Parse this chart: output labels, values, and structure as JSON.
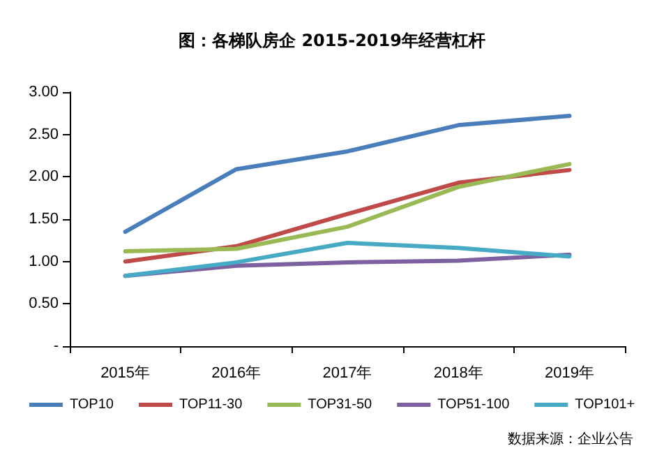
{
  "chart_data": {
    "type": "line",
    "title": "图：各梯队房企 2015-2019年经营杠杆",
    "categories": [
      "2015年",
      "2016年",
      "2017年",
      "2018年",
      "2019年"
    ],
    "series": [
      {
        "name": "TOP10",
        "color": "#4a7ebb",
        "values": [
          1.35,
          2.09,
          2.3,
          2.61,
          2.72
        ]
      },
      {
        "name": "TOP11-30",
        "color": "#be4b48",
        "values": [
          1.0,
          1.18,
          1.56,
          1.93,
          2.08
        ]
      },
      {
        "name": "TOP31-50",
        "color": "#98b954",
        "values": [
          1.12,
          1.15,
          1.41,
          1.88,
          2.15
        ]
      },
      {
        "name": "TOP51-100",
        "color": "#7d60a0",
        "values": [
          0.83,
          0.95,
          0.99,
          1.01,
          1.08
        ]
      },
      {
        "name": "TOP101+",
        "color": "#46aac5",
        "values": [
          0.83,
          0.99,
          1.22,
          1.16,
          1.06
        ]
      }
    ],
    "ylim": [
      0,
      3
    ],
    "yticks": [
      {
        "value": 0,
        "label": "-"
      },
      {
        "value": 0.5,
        "label": "0.50"
      },
      {
        "value": 1,
        "label": "1.00"
      },
      {
        "value": 1.5,
        "label": "1.50"
      },
      {
        "value": 2,
        "label": "2.00"
      },
      {
        "value": 2.5,
        "label": "2.50"
      },
      {
        "value": 3,
        "label": "3.00"
      }
    ],
    "grid": false,
    "legend": "bottom",
    "marker": "none",
    "line_style": "solid",
    "annotations": [
      "数据来源：企业公告"
    ]
  }
}
